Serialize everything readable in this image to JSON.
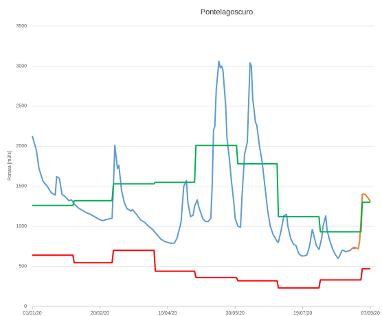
{
  "chart_data": {
    "type": "line",
    "title": "Pontelagoscuro",
    "y_label": "Portata [m3/s]",
    "xlim": [
      "01/01/20",
      "10/09/20"
    ],
    "xticks": [
      "01/01/20",
      "20/02/20",
      "10/04/20",
      "30/05/20",
      "19/07/20",
      "07/09/20"
    ],
    "ylim": [
      0,
      3500
    ],
    "yticks": [
      0,
      500,
      1000,
      1500,
      2000,
      2500,
      3000,
      3500
    ],
    "grid": true,
    "series": [
      {
        "color": "#5b9bd5",
        "x": [
          "01/01/20",
          "04/01/20",
          "06/01/20",
          "09/01/20",
          "12/01/20",
          "15/01/20",
          "18/01/20",
          "19/01/20",
          "21/01/20",
          "23/01/20",
          "26/01/20",
          "28/01/20",
          "30/01/20",
          "01/02/20",
          "04/02/20",
          "07/02/20",
          "10/02/20",
          "13/02/20",
          "16/02/20",
          "19/02/20",
          "22/02/20",
          "26/02/20",
          "29/02/20",
          "01/03/20",
          "02/03/20",
          "04/03/20",
          "05/03/20",
          "07/03/20",
          "09/03/20",
          "11/03/20",
          "14/03/20",
          "15/03/20",
          "18/03/20",
          "21/03/20",
          "24/03/20",
          "27/03/20",
          "30/03/20",
          "02/04/20",
          "05/04/20",
          "08/04/20",
          "12/04/20",
          "15/04/20",
          "17/04/20",
          "20/04/20",
          "22/04/20",
          "24/04/20",
          "25/04/20",
          "27/04/20",
          "29/04/20",
          "30/04/20",
          "02/05/20",
          "03/05/20",
          "06/05/20",
          "08/05/20",
          "10/05/20",
          "12/05/20",
          "13/05/20",
          "14/05/20",
          "15/05/20",
          "16/05/20",
          "18/05/20",
          "19/05/20",
          "20/05/20",
          "21/05/20",
          "23/05/20",
          "24/05/20",
          "26/05/20",
          "27/05/20",
          "29/05/20",
          "30/05/20",
          "01/06/20",
          "03/06/20",
          "04/06/20",
          "06/06/20",
          "08/06/20",
          "10/06/20",
          "11/06/20",
          "12/06/20",
          "14/06/20",
          "15/06/20",
          "17/06/20",
          "19/06/20",
          "21/06/20",
          "23/06/20",
          "25/06/20",
          "27/06/20",
          "30/06/20",
          "01/07/20",
          "03/07/20",
          "05/07/20",
          "07/07/20",
          "08/07/20",
          "10/07/20",
          "12/07/20",
          "14/07/20",
          "16/07/20",
          "18/07/20",
          "20/07/20",
          "22/07/20",
          "24/07/20",
          "26/07/20",
          "27/07/20",
          "29/07/20",
          "31/07/20",
          "02/08/20",
          "03/08/20",
          "05/08/20",
          "06/08/20",
          "08/08/20",
          "10/08/20",
          "12/08/20",
          "14/08/20",
          "15/08/20",
          "17/08/20",
          "18/08/20",
          "20/08/20",
          "21/08/20",
          "23/08/20",
          "25/08/20",
          "27/08/20"
        ],
        "values": [
          2130,
          1950,
          1720,
          1560,
          1500,
          1420,
          1390,
          1620,
          1600,
          1400,
          1360,
          1320,
          1330,
          1280,
          1230,
          1200,
          1170,
          1150,
          1120,
          1090,
          1070,
          1090,
          1100,
          1500,
          2010,
          1720,
          1760,
          1450,
          1300,
          1220,
          1190,
          1210,
          1150,
          1080,
          1050,
          1000,
          960,
          900,
          840,
          810,
          790,
          790,
          850,
          1050,
          1500,
          1570,
          1300,
          1120,
          1140,
          1250,
          1330,
          1250,
          1100,
          1060,
          1060,
          1100,
          1500,
          2200,
          2250,
          2700,
          3060,
          2980,
          3000,
          2950,
          2500,
          2100,
          1800,
          1600,
          1300,
          1100,
          1000,
          990,
          1350,
          1900,
          2050,
          3040,
          3000,
          2600,
          2300,
          2260,
          2000,
          1800,
          1500,
          1200,
          1000,
          900,
          810,
          800,
          950,
          1130,
          1150,
          1000,
          850,
          780,
          760,
          660,
          630,
          630,
          640,
          750,
          960,
          900,
          760,
          710,
          850,
          1000,
          1130,
          950,
          820,
          720,
          650,
          600,
          620,
          700,
          700,
          680,
          690,
          700,
          730,
          720
        ]
      },
      {
        "color": "#ed7d31",
        "x": [
          "23/08/20",
          "26/08/20",
          "29/08/20",
          "30/08/20",
          "31/08/20",
          "01/09/20",
          "03/09/20",
          "05/09/20",
          "07/09/20"
        ],
        "values": [
          700,
          740,
          720,
          800,
          1050,
          1400,
          1400,
          1360,
          1310
        ]
      },
      {
        "color": "#00b050",
        "x": [
          "01/01/20",
          "31/01/20",
          "01/02/20",
          "29/02/20",
          "01/03/20",
          "31/03/20",
          "01/04/20",
          "30/04/20",
          "01/05/20",
          "31/05/20",
          "01/06/20",
          "30/06/20",
          "01/07/20",
          "31/07/20",
          "01/08/20",
          "31/08/20",
          "01/09/20",
          "07/09/20"
        ],
        "values": [
          1260,
          1260,
          1320,
          1320,
          1530,
          1530,
          1550,
          1550,
          2010,
          2010,
          1780,
          1780,
          1120,
          1120,
          930,
          930,
          1300,
          1300
        ]
      },
      {
        "color": "#ff0000",
        "x": [
          "01/01/20",
          "31/01/20",
          "01/02/20",
          "29/02/20",
          "01/03/20",
          "31/03/20",
          "01/04/20",
          "30/04/20",
          "01/05/20",
          "31/05/20",
          "01/06/20",
          "30/06/20",
          "01/07/20",
          "31/07/20",
          "01/08/20",
          "31/08/20",
          "01/09/20",
          "07/09/20"
        ],
        "values": [
          640,
          640,
          545,
          545,
          700,
          700,
          440,
          440,
          360,
          360,
          320,
          320,
          230,
          230,
          330,
          330,
          470,
          470
        ]
      }
    ]
  }
}
